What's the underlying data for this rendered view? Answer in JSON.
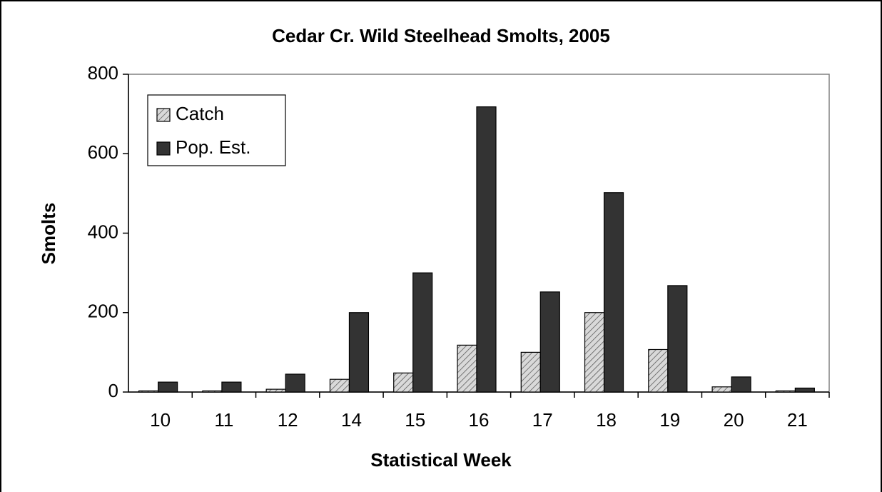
{
  "chart_data": {
    "type": "bar",
    "title": "Cedar Cr. Wild Steelhead Smolts, 2005",
    "x_label": "Statistical Week",
    "y_label": "Smolts",
    "categories": [
      "10",
      "11",
      "12",
      "14",
      "15",
      "16",
      "17",
      "18",
      "19",
      "20",
      "21"
    ],
    "series": [
      {
        "name": "Catch",
        "color": "#d9d9d9",
        "hatch": true,
        "values": [
          3,
          3,
          7,
          32,
          48,
          118,
          100,
          200,
          107,
          13,
          3
        ]
      },
      {
        "name": "Pop. Est.",
        "color": "#333333",
        "hatch": false,
        "values": [
          25,
          25,
          45,
          200,
          300,
          718,
          252,
          502,
          268,
          38,
          10
        ]
      }
    ],
    "ylim": [
      0,
      800
    ],
    "yticks": [
      0,
      200,
      400,
      600,
      800
    ],
    "grid": false,
    "legend": "upper left"
  }
}
